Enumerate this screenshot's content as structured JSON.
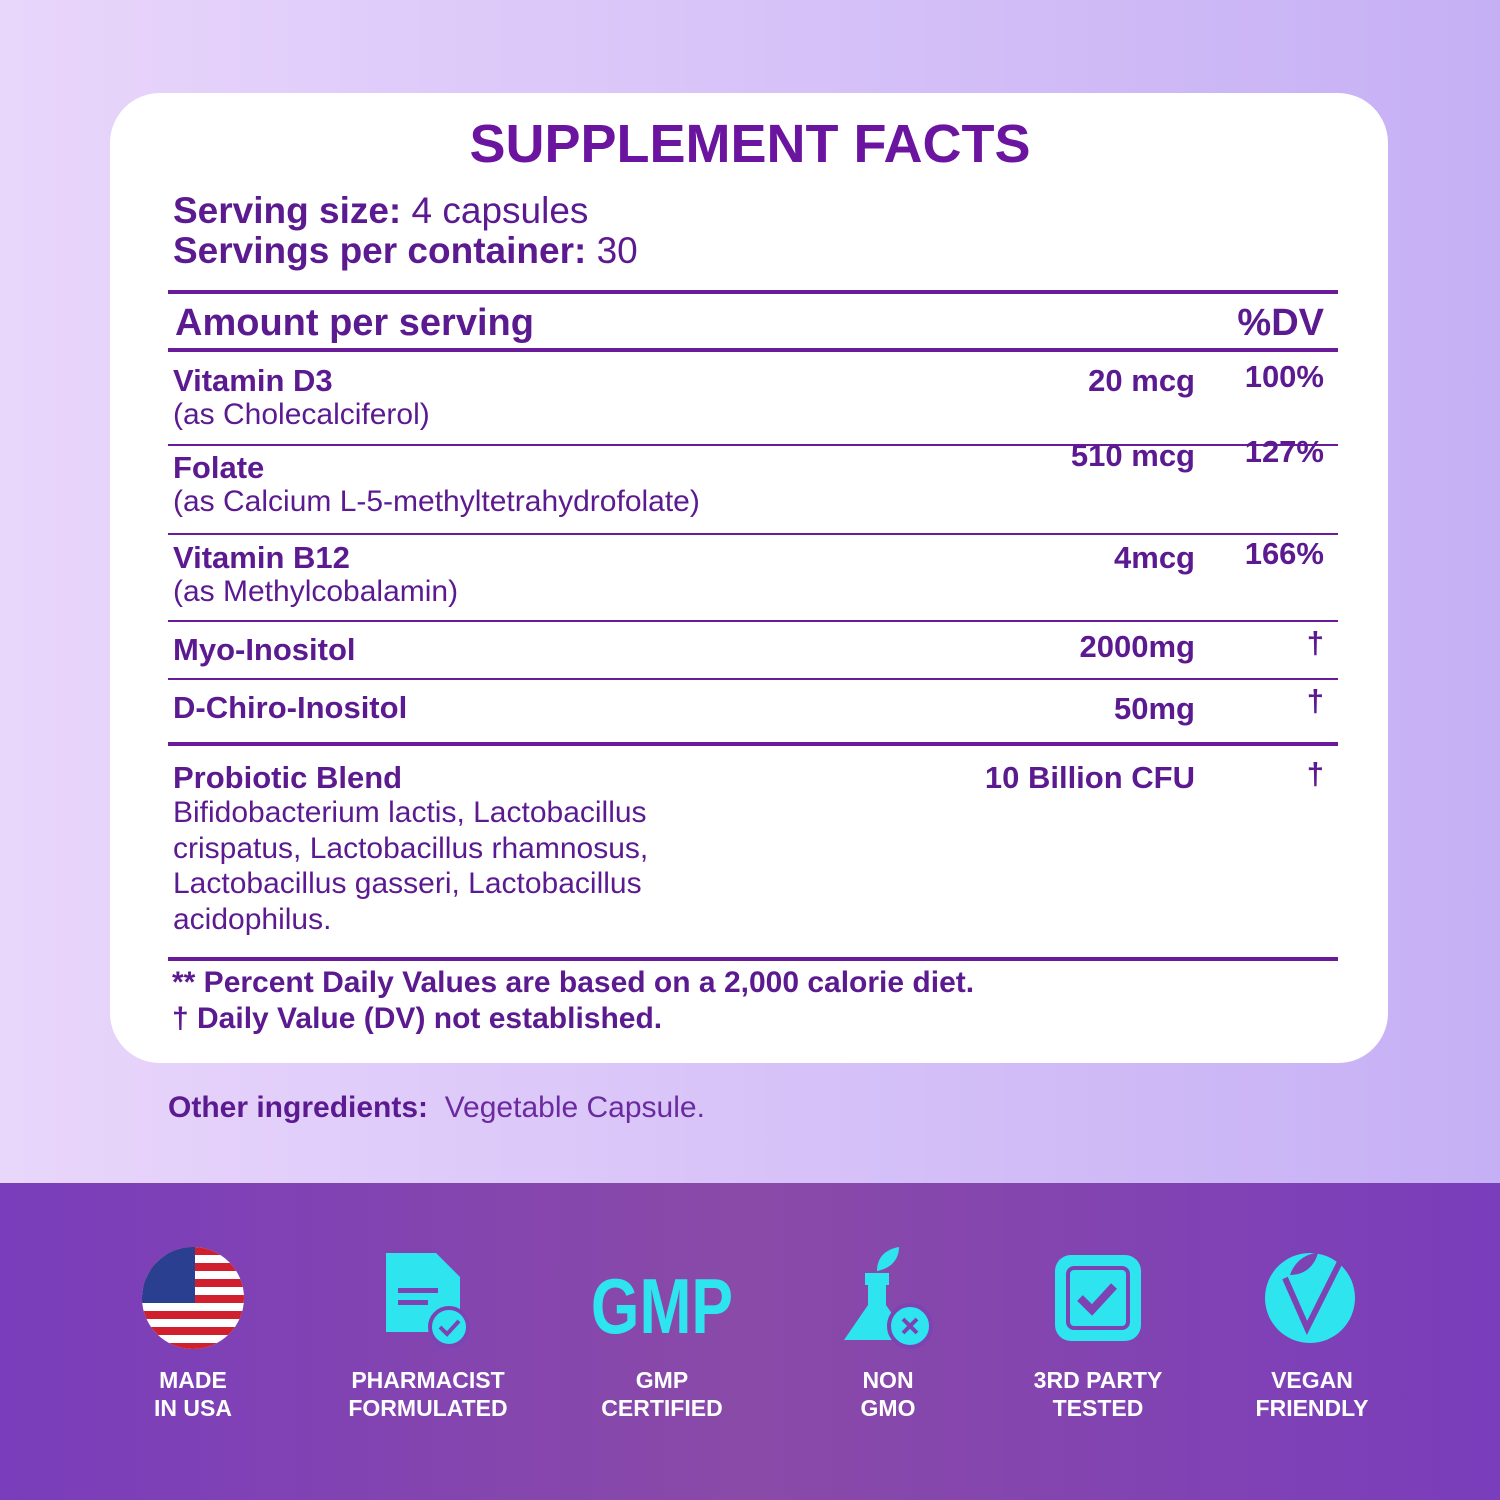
{
  "title": "SUPPLEMENT FACTS",
  "serving": {
    "size_label": "Serving size:",
    "size_value": "4 capsules",
    "per_container_label": "Servings per container:",
    "per_container_value": "30"
  },
  "header": {
    "amount": "Amount per serving",
    "dv": "%DV"
  },
  "rows": [
    {
      "name": "Vitamin D3",
      "source": "(as Cholecalciferol)",
      "amount": "20 mcg",
      "dv": "100%"
    },
    {
      "name": "Folate",
      "source": "(as Calcium L-5-methyltetrahydrofolate)",
      "amount": "510 mcg",
      "dv": "127%"
    },
    {
      "name": "Vitamin B12",
      "source": "(as Methylcobalamin)",
      "amount": "4mcg",
      "dv": "166%"
    },
    {
      "name": "Myo-Inositol",
      "amount": "2000mg",
      "dv": "†"
    },
    {
      "name": "D-Chiro-Inositol",
      "amount": "50mg",
      "dv": "†"
    },
    {
      "name": "Probiotic Blend",
      "lines": [
        "Bifidobacterium lactis, Lactobacillus",
        "crispatus, Lactobacillus rhamnosus,",
        "Lactobacillus gasseri, Lactobacillus",
        "acidophilus."
      ],
      "amount": "10 Billion CFU",
      "dv": "†"
    }
  ],
  "footnotes": [
    "** Percent Daily Values are based on a 2,000 calorie diet.",
    "†  Daily Value (DV) not established."
  ],
  "other": {
    "label": "Other ingredients:",
    "value": "Vegetable Capsule."
  },
  "badges": [
    {
      "line1": "MADE",
      "line2": "IN USA"
    },
    {
      "line1": "PHARMACIST",
      "line2": "FORMULATED"
    },
    {
      "icon_text": "GMP",
      "line1": "GMP",
      "line2": "CERTIFIED"
    },
    {
      "line1": "NON",
      "line2": "GMO"
    },
    {
      "line1": "3RD PARTY",
      "line2": "TESTED"
    },
    {
      "line1": "VEGAN",
      "line2": "FRIENDLY"
    }
  ]
}
